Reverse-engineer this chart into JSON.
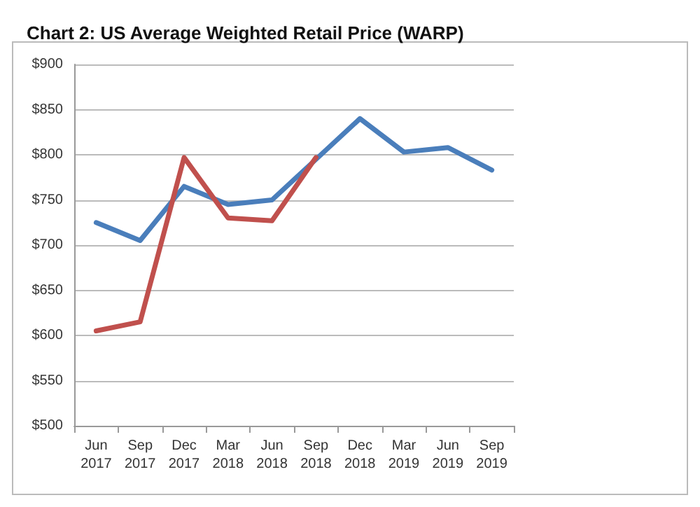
{
  "chart_data": {
    "type": "line",
    "title": "Chart 2: US Average Weighted Retail Price (WARP)",
    "categories": [
      "Jun\n2017",
      "Sep\n2017",
      "Dec\n2017",
      "Mar\n2018",
      "Jun\n2018",
      "Sep\n2018",
      "Dec\n2018",
      "Mar\n2019",
      "Jun\n2019",
      "Sep\n2019"
    ],
    "series": [
      {
        "color": "#4a7ebb",
        "values": [
          725,
          705,
          765,
          745,
          750,
          795,
          840,
          803,
          808,
          783
        ]
      },
      {
        "color": "#c0504d",
        "values": [
          605,
          615,
          797,
          730,
          727,
          797,
          null,
          null,
          null,
          null
        ]
      }
    ],
    "ylim": [
      500,
      900
    ],
    "yticks": [
      {
        "value": 500,
        "label": "$500"
      },
      {
        "value": 550,
        "label": "$550"
      },
      {
        "value": 600,
        "label": "$600"
      },
      {
        "value": 650,
        "label": "$650"
      },
      {
        "value": 700,
        "label": "$700"
      },
      {
        "value": 750,
        "label": "$750"
      },
      {
        "value": 800,
        "label": "$800"
      },
      {
        "value": 850,
        "label": "$850"
      },
      {
        "value": 900,
        "label": "$900"
      }
    ],
    "grid": "y",
    "marker": "none",
    "line_style": "solid"
  }
}
